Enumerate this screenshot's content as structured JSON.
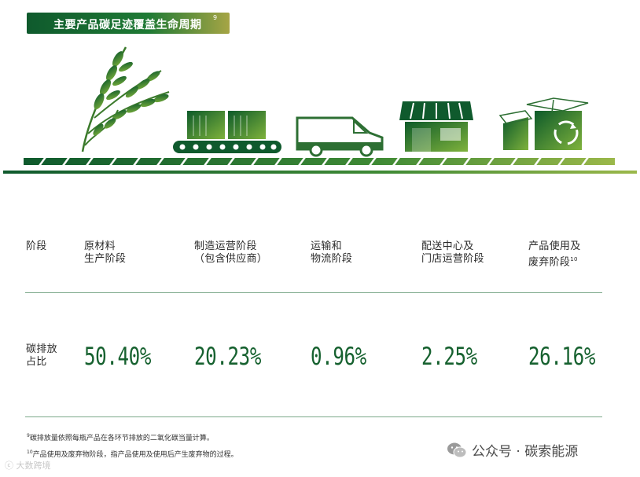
{
  "title": "主要产品碳足迹覆盖生命周期",
  "title_note": "9",
  "header_label": "阶段",
  "stages": [
    {
      "line1": "原材料",
      "line2": "生产阶段",
      "note": "",
      "share": "50.40%"
    },
    {
      "line1": "制造运营阶段",
      "line2": "（包含供应商）",
      "note": "",
      "share": "20.23%"
    },
    {
      "line1": "运输和",
      "line2": "物流阶段",
      "note": "",
      "share": "0.96%"
    },
    {
      "line1": "配送中心及",
      "line2": "门店运营阶段",
      "note": "",
      "share": "2.25%"
    },
    {
      "line1": "产品使用及",
      "line2": "废弃阶段",
      "note": "10",
      "share": "26.16%"
    }
  ],
  "share_label_line1": "碳排放",
  "share_label_line2": "占比",
  "footnotes": [
    {
      "mark": "9",
      "text": "碳排放量依照每瓶产品在各环节排放的二氧化碳当量计算。"
    },
    {
      "mark": "10",
      "text": "产品使用及废弃物阶段，指产品使用及使用后产生废弃物的过程。"
    }
  ],
  "watermark_right": "公众号 · 碳索能源",
  "watermark_left": "ⓒ 大数跨境",
  "colors": {
    "primary_green": "#16612f",
    "light_green": "#8dbb3f",
    "rule": "#7ba889"
  },
  "icons": [
    "wheat-icon",
    "conveyor-icon",
    "van-icon",
    "store-icon",
    "recycle-box-icon",
    "wechat-icon"
  ]
}
